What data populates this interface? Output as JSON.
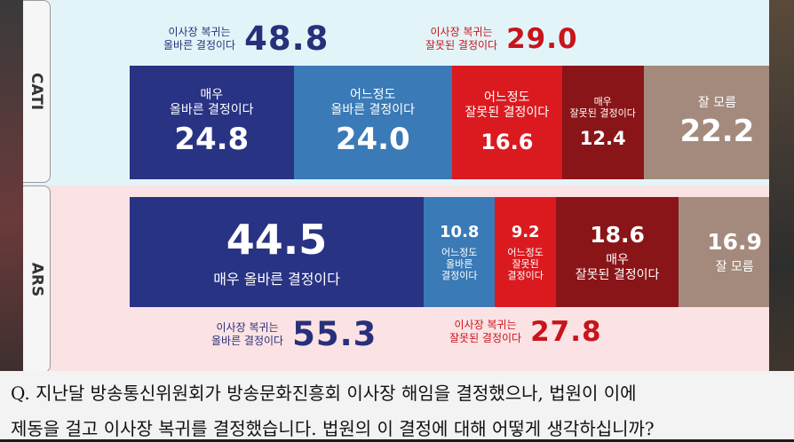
{
  "question": {
    "line1": "Q.  지난달 방송통신위원회가 방송문화진흥회 이사장 해임을 결정했으나, 법원이 이에",
    "line2": "제동을 걸고 이사장 복귀를 결정했습니다. 법원의 이 결정에 대해 어떻게 생각하십니까?"
  },
  "chart_data": [
    {
      "type": "bar",
      "name": "CATI",
      "stacked": true,
      "summary": [
        {
          "label": "이사장 복귀는\n올바른 결정이다",
          "value": 48.8
        },
        {
          "label": "이사장 복귀는\n잘못된 결정이다",
          "value": 29.0
        }
      ],
      "segments": [
        {
          "label": "매우\n올바른 결정이다",
          "value": 24.8,
          "color": "#293384"
        },
        {
          "label": "어느정도\n올바른 결정이다",
          "value": 24.0,
          "color": "#3a7ab6"
        },
        {
          "label": "어느정도\n잘못된 결정이다",
          "value": 16.6,
          "color": "#db1a20"
        },
        {
          "label": "매우\n잘못된 결정이다",
          "value": 12.4,
          "color": "#8a1518"
        },
        {
          "label": "잘 모름",
          "value": 22.2,
          "color": "#a48a7d"
        }
      ]
    },
    {
      "type": "bar",
      "name": "ARS",
      "stacked": true,
      "summary": [
        {
          "label": "이사장 복귀는\n올바른 결정이다",
          "value": 55.3
        },
        {
          "label": "이사장 복귀는\n잘못된 결정이다",
          "value": 27.8
        }
      ],
      "segments": [
        {
          "label": "매우 올바른 결정이다",
          "value": 44.5,
          "color": "#293384"
        },
        {
          "label": "어느정도\n올바른\n결정이다",
          "value": 10.8,
          "color": "#3a7ab6"
        },
        {
          "label": "어느정도\n잘못된\n결정이다",
          "value": 9.2,
          "color": "#db1a20"
        },
        {
          "label": "매우\n잘못된 결정이다",
          "value": 18.6,
          "color": "#8a1518"
        },
        {
          "label": "잘 모름",
          "value": 16.9,
          "color": "#a48a7d"
        }
      ]
    }
  ]
}
